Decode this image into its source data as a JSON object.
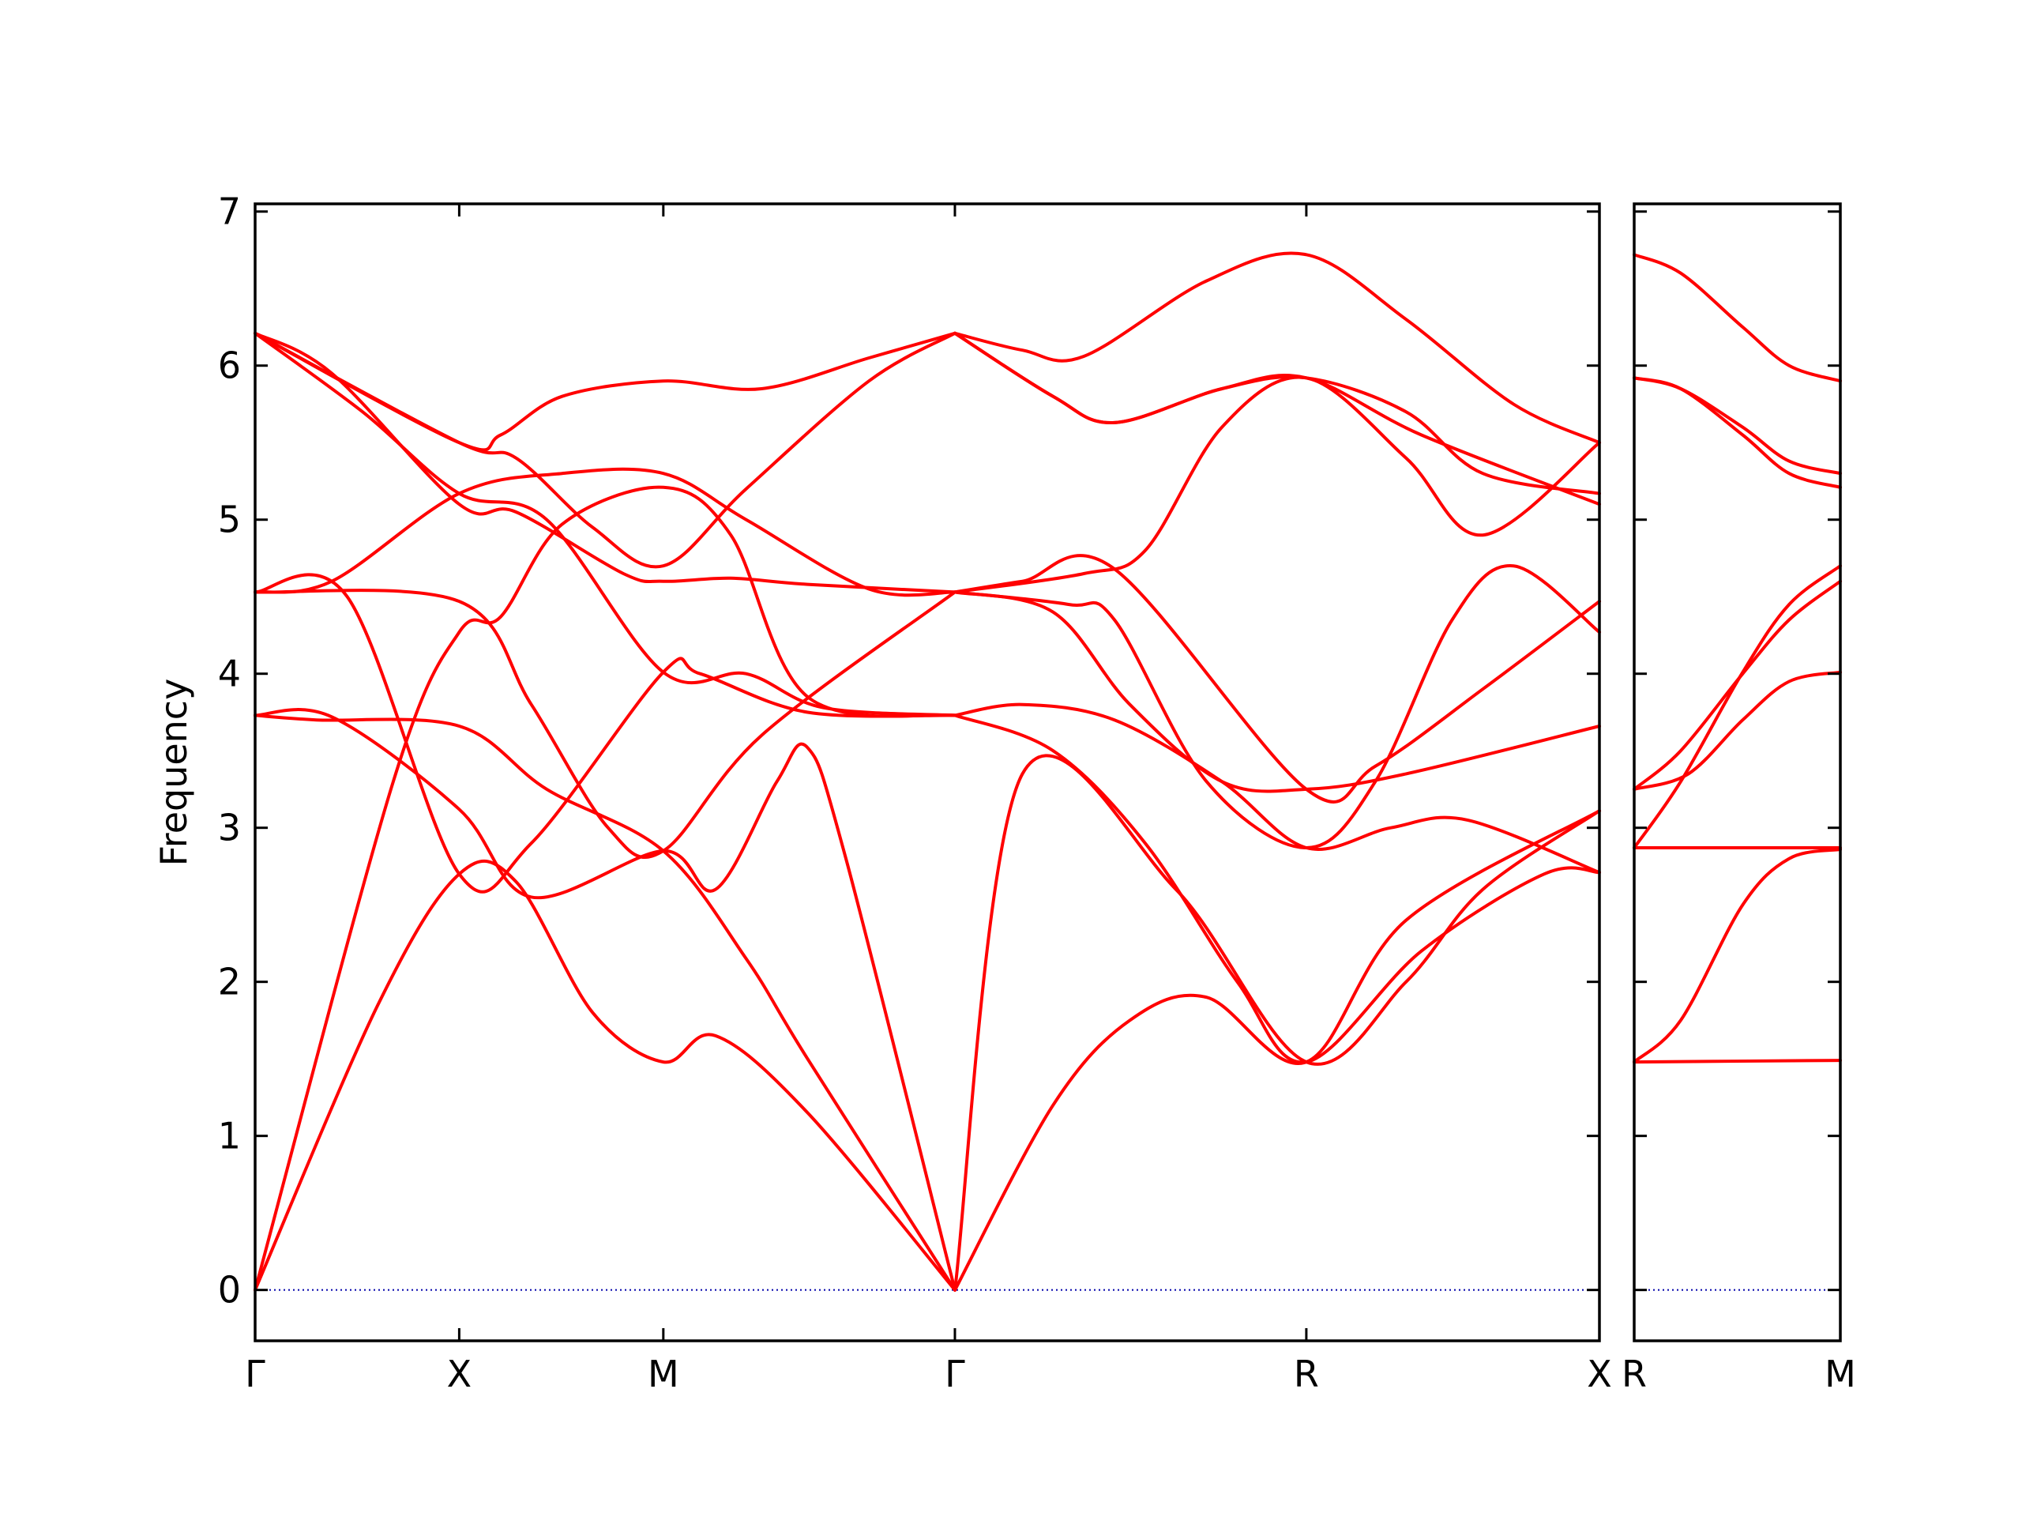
{
  "chart_data": {
    "type": "line",
    "title": "",
    "ylabel": "Frequency",
    "ylim": [
      -0.33,
      7.05
    ],
    "y_ticks": [
      0,
      1,
      2,
      3,
      4,
      5,
      6,
      7
    ],
    "y_tick_labels": [
      "0",
      "1",
      "2",
      "3",
      "4",
      "5",
      "6",
      "7"
    ],
    "colors": {
      "bands": "#ff0000",
      "zero_line": "#0000aa",
      "axes": "#000000"
    },
    "zero_line": "dotted",
    "panels": [
      {
        "path_labels": [
          "Γ",
          "X",
          "M",
          "Γ",
          "R",
          "X"
        ],
        "x_range": [
          0,
          8.76
        ],
        "high_symmetry_x": [
          0,
          1.33,
          2.66,
          4.56,
          6.85,
          8.76
        ],
        "bands": [
          {
            "x": [
              0,
              0.8,
              1.33,
              1.7,
              2.2,
              2.66,
              3.0,
              3.6,
              4.56
            ],
            "y": [
              0,
              1.85,
              2.7,
              2.65,
              1.8,
              1.48,
              1.65,
              1.15,
              0
            ]
          },
          {
            "x": [
              0,
              0.9,
              1.33,
              1.6,
              2.0,
              2.66,
              3.1,
              3.6,
              4.56
            ],
            "y": [
              0,
              3.3,
              4.27,
              4.37,
              4.97,
              5.21,
              4.9,
              3.85,
              3.73
            ]
          },
          {
            "x": [
              0,
              0.5,
              1.33,
              1.8,
              2.66,
              3.0,
              3.4,
              3.6,
              3.85,
              4.56
            ],
            "y": [
              3.73,
              3.72,
              3.12,
              2.55,
              2.85,
              2.6,
              3.3,
              3.52,
              2.8,
              0
            ]
          },
          {
            "x": [
              0,
              0.4,
              1.33,
              1.9,
              2.66,
              3.2,
              3.6,
              4.56
            ],
            "y": [
              3.73,
              3.7,
              3.66,
              3.25,
              2.85,
              2.15,
              1.5,
              0
            ]
          },
          {
            "x": [
              0,
              1.33,
              1.8,
              2.3,
              2.66,
              3.3,
              4.56
            ],
            "y": [
              4.53,
              4.47,
              3.8,
              3.0,
              2.85,
              3.6,
              4.53
            ]
          },
          {
            "x": [
              0,
              0.5,
              1.33,
              2.0,
              2.66,
              3.2,
              4.0,
              4.56
            ],
            "y": [
              4.53,
              4.6,
              5.17,
              5.3,
              5.3,
              5.0,
              4.55,
              4.53
            ]
          },
          {
            "x": [
              0,
              1.33,
              1.7,
              2.2,
              2.66,
              3.2,
              4.0,
              4.56
            ],
            "y": [
              6.21,
              5.5,
              5.4,
              4.95,
              4.7,
              5.2,
              5.9,
              6.21
            ]
          },
          {
            "x": [
              0,
              1.33,
              1.6,
              2.0,
              2.66,
              3.3,
              4.0,
              4.56
            ],
            "y": [
              6.21,
              5.5,
              5.55,
              5.8,
              5.9,
              5.85,
              6.05,
              6.21
            ]
          },
          {
            "x": [
              0,
              0.5,
              1.33,
              1.7,
              2.4,
              2.66,
              3.1,
              3.6,
              4.56
            ],
            "y": [
              6.21,
              5.95,
              5.1,
              5.05,
              4.65,
              4.6,
              4.62,
              4.58,
              4.53
            ]
          },
          {
            "x": [
              0,
              0.7,
              1.33,
              1.9,
              2.66,
              3.2,
              3.7,
              4.56
            ],
            "y": [
              6.21,
              5.7,
              5.17,
              5.0,
              4.01,
              4.0,
              3.78,
              3.73
            ]
          },
          {
            "x": [
              0,
              0.6,
              1.33,
              1.8,
              2.66,
              2.9,
              3.6,
              4.56
            ],
            "y": [
              4.53,
              4.5,
              2.7,
              2.9,
              4.01,
              4.0,
              3.75,
              3.73
            ]
          },
          {
            "x": [
              4.56,
              5.2,
              5.7,
              6.2,
              6.85,
              7.5,
              8.76
            ],
            "y": [
              0,
              1.2,
              1.75,
              1.9,
              1.48,
              2.4,
              3.11
            ]
          },
          {
            "x": [
              4.56,
              5.0,
              6.0,
              6.85,
              7.5,
              8.0,
              8.76
            ],
            "y": [
              0,
              3.35,
              2.6,
              1.48,
              2.0,
              2.6,
              3.11
            ]
          },
          {
            "x": [
              4.56,
              5.2,
              5.8,
              6.4,
              6.85,
              7.6,
              8.4,
              8.76
            ],
            "y": [
              3.73,
              3.5,
              2.9,
              2.0,
              1.48,
              2.2,
              2.7,
              2.71
            ]
          },
          {
            "x": [
              4.56,
              5.0,
              5.6,
              6.3,
              6.85,
              7.4,
              7.9,
              8.76
            ],
            "y": [
              3.73,
              3.8,
              3.7,
              3.3,
              2.87,
              3.0,
              3.05,
              2.71
            ]
          },
          {
            "x": [
              4.56,
              5.2,
              5.7,
              6.3,
              6.85,
              7.5,
              8.76
            ],
            "y": [
              4.53,
              4.4,
              3.8,
              3.3,
              3.25,
              3.35,
              3.66
            ]
          },
          {
            "x": [
              4.56,
              5.3,
              5.6,
              6.2,
              6.85,
              7.3,
              7.8,
              8.2,
              8.76
            ],
            "y": [
              4.53,
              4.45,
              4.35,
              3.3,
              2.87,
              3.3,
              4.35,
              4.7,
              4.27
            ]
          },
          {
            "x": [
              4.56,
              5.0,
              5.6,
              6.85,
              7.3,
              8.0,
              8.76
            ],
            "y": [
              4.53,
              4.6,
              4.68,
              3.25,
              3.4,
              3.9,
              4.47
            ]
          },
          {
            "x": [
              4.56,
              5.4,
              5.8,
              6.3,
              6.85,
              7.5,
              8.0,
              8.76
            ],
            "y": [
              4.53,
              4.65,
              4.8,
              5.6,
              5.92,
              5.4,
              4.9,
              5.5
            ]
          },
          {
            "x": [
              4.56,
              5.2,
              5.6,
              6.3,
              6.85,
              7.5,
              8.0,
              8.76
            ],
            "y": [
              6.21,
              5.8,
              5.63,
              5.85,
              5.92,
              5.7,
              5.3,
              5.17
            ]
          },
          {
            "x": [
              4.56,
              5.0,
              5.4,
              6.2,
              6.85,
              7.5,
              8.2,
              8.76
            ],
            "y": [
              6.21,
              6.1,
              6.06,
              6.55,
              6.72,
              6.3,
              5.75,
              5.5
            ]
          },
          {
            "x": [
              4.56,
              5.2,
              5.6,
              6.3,
              6.85,
              7.6,
              8.76
            ],
            "y": [
              6.21,
              5.8,
              5.63,
              5.85,
              5.92,
              5.55,
              5.1
            ]
          }
        ]
      },
      {
        "path_labels": [
          "R",
          "M"
        ],
        "x_range": [
          0,
          1.33
        ],
        "high_symmetry_x": [
          0,
          1.33
        ],
        "bands": [
          {
            "x": [
              0,
              1.33
            ],
            "y": [
              1.48,
              1.49
            ]
          },
          {
            "x": [
              0,
              0.3,
              0.7,
              1.0,
              1.33
            ],
            "y": [
              1.48,
              1.75,
              2.5,
              2.8,
              2.86
            ]
          },
          {
            "x": [
              0,
              1.33
            ],
            "y": [
              2.87,
              2.87
            ]
          },
          {
            "x": [
              0,
              0.3,
              0.7,
              1.0,
              1.33
            ],
            "y": [
              2.87,
              3.3,
              4.01,
              4.45,
              4.7
            ]
          },
          {
            "x": [
              0,
              0.35,
              0.7,
              1.0,
              1.33
            ],
            "y": [
              3.25,
              3.35,
              3.7,
              3.95,
              4.01
            ]
          },
          {
            "x": [
              0,
              0.3,
              0.7,
              1.0,
              1.33
            ],
            "y": [
              3.25,
              3.5,
              4.0,
              4.35,
              4.6
            ]
          },
          {
            "x": [
              0,
              0.3,
              0.7,
              1.0,
              1.33
            ],
            "y": [
              5.92,
              5.85,
              5.55,
              5.3,
              5.21
            ]
          },
          {
            "x": [
              0,
              0.3,
              0.7,
              1.0,
              1.33
            ],
            "y": [
              5.92,
              5.85,
              5.6,
              5.38,
              5.3
            ]
          },
          {
            "x": [
              0,
              0.3,
              0.7,
              1.0,
              1.33
            ],
            "y": [
              6.72,
              6.6,
              6.25,
              6.0,
              5.9
            ]
          }
        ]
      }
    ]
  }
}
